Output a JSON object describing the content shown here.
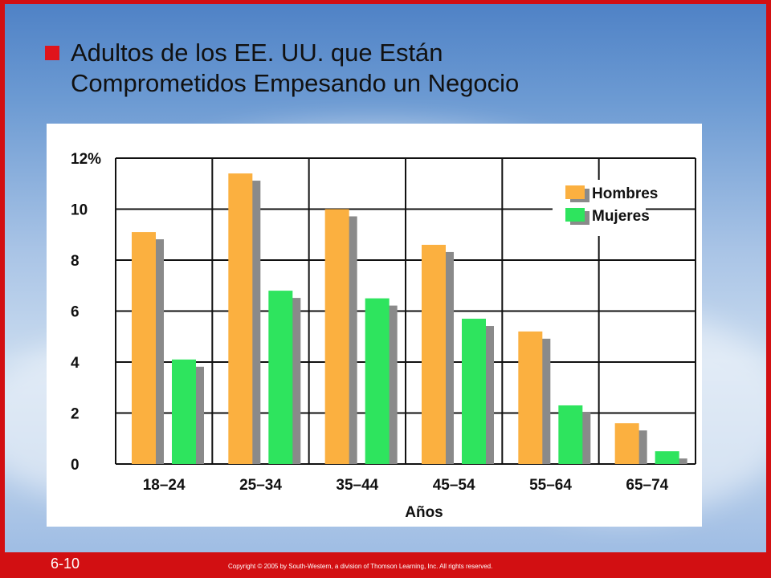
{
  "slide": {
    "title_line1": "Adultos de los EE. UU. que Están",
    "title_line2": "Comprometidos Empesando un Negocio",
    "page_number": "6-10",
    "copyright": "Copyright © 2005 by South-Western, a division of Thomson Learning, Inc. All rights reserved."
  },
  "colors": {
    "border": "#d20f12",
    "bullet": "#e0141b",
    "hombres": "#fbb040",
    "mujeres": "#2ee45e",
    "shadow": "#8a8a8a"
  },
  "chart_data": {
    "type": "bar",
    "categories": [
      "18–24",
      "25–34",
      "35–44",
      "45–54",
      "55–64",
      "65–74"
    ],
    "series": [
      {
        "name": "Hombres",
        "values": [
          9.1,
          11.4,
          10.0,
          8.6,
          5.2,
          1.6
        ]
      },
      {
        "name": "Mujeres",
        "values": [
          4.1,
          6.8,
          6.5,
          5.7,
          2.3,
          0.5
        ]
      }
    ],
    "title": "",
    "xlabel": "Años",
    "ylabel": "",
    "ylim": [
      0,
      12
    ],
    "yticks": [
      0,
      2,
      4,
      6,
      8,
      10,
      12
    ],
    "ytick_labels": [
      "0",
      "2",
      "4",
      "6",
      "8",
      "10",
      "12%"
    ],
    "grid": true,
    "legend_position": "top-right"
  }
}
